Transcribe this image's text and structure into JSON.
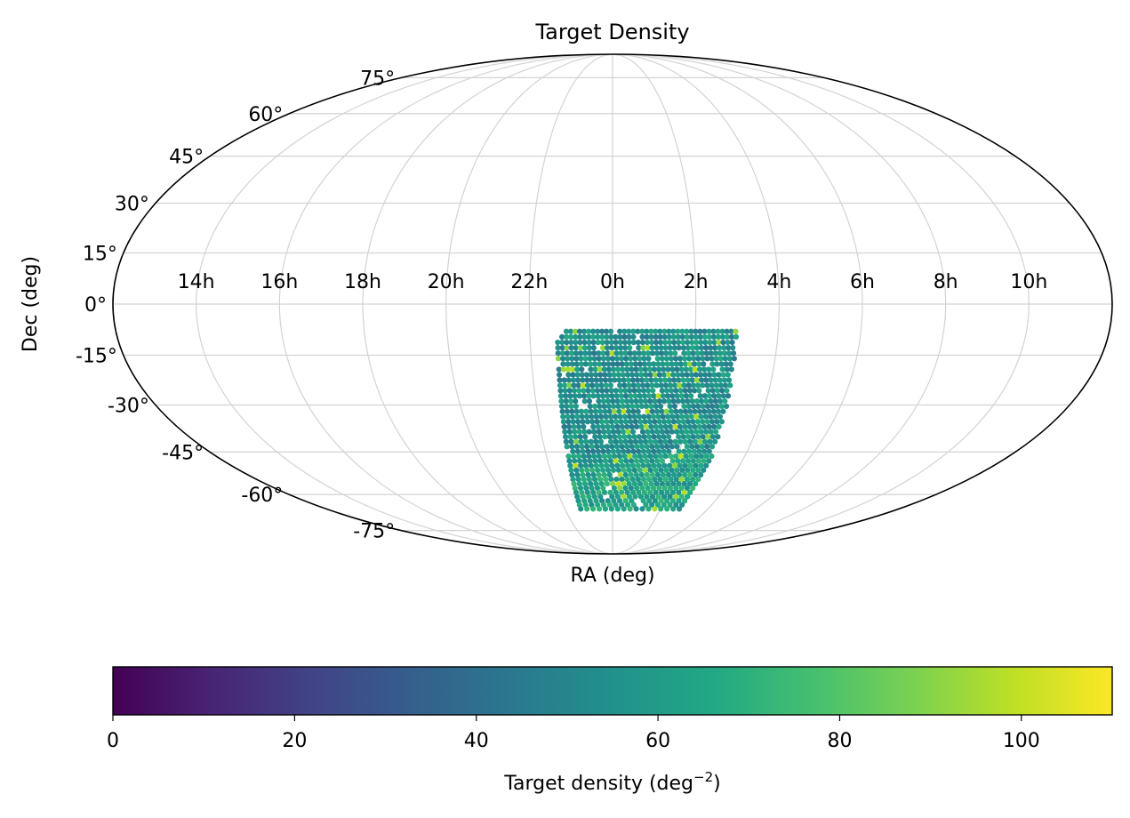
{
  "chart_data": {
    "type": "scatter",
    "projection": "mollweide",
    "title": "Target Density",
    "xlabel": "RA (deg)",
    "ylabel": "Dec (deg)",
    "ra_tick_labels": [
      "14h",
      "16h",
      "18h",
      "20h",
      "22h",
      "0h",
      "2h",
      "4h",
      "6h",
      "8h",
      "10h"
    ],
    "ra_tick_values_deg": [
      210,
      240,
      270,
      300,
      330,
      0,
      30,
      60,
      90,
      120,
      150
    ],
    "dec_tick_labels": [
      "75°",
      "60°",
      "45°",
      "30°",
      "15°",
      "0°",
      "-15°",
      "-30°",
      "-45°",
      "-60°",
      "-75°"
    ],
    "dec_tick_values_deg": [
      75,
      60,
      45,
      30,
      15,
      0,
      -15,
      -30,
      -45,
      -60,
      -75
    ],
    "grid": true,
    "colormap": "viridis",
    "colorbar": {
      "label": "Target density  (deg",
      "label_exponent": "−2",
      "label_close": ")",
      "range": [
        0,
        110
      ],
      "tick_labels": [
        "0",
        "20",
        "40",
        "60",
        "80",
        "100"
      ],
      "tick_values": [
        0,
        20,
        40,
        60,
        80,
        100
      ],
      "placement": "bottom"
    },
    "footprint": {
      "ra_range_deg": [
        -20,
        45
      ],
      "dec_range_deg": [
        -67,
        -8
      ],
      "typical_density": 55,
      "density_range": [
        40,
        100
      ]
    }
  }
}
